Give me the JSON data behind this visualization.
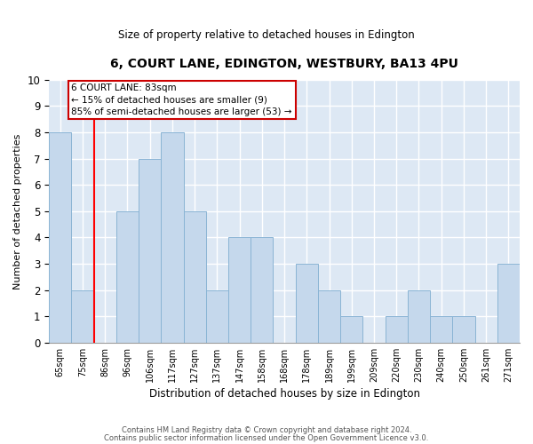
{
  "title1": "6, COURT LANE, EDINGTON, WESTBURY, BA13 4PU",
  "title2": "Size of property relative to detached houses in Edington",
  "xlabel": "Distribution of detached houses by size in Edington",
  "ylabel": "Number of detached properties",
  "bins": [
    "65sqm",
    "75sqm",
    "86sqm",
    "96sqm",
    "106sqm",
    "117sqm",
    "127sqm",
    "137sqm",
    "147sqm",
    "158sqm",
    "168sqm",
    "178sqm",
    "189sqm",
    "199sqm",
    "209sqm",
    "220sqm",
    "230sqm",
    "240sqm",
    "250sqm",
    "261sqm",
    "271sqm"
  ],
  "values": [
    8,
    2,
    0,
    5,
    7,
    8,
    5,
    2,
    4,
    4,
    0,
    3,
    2,
    1,
    0,
    1,
    2,
    1,
    1,
    0,
    3
  ],
  "bar_color": "#c5d8ec",
  "bar_edge_color": "#8ab4d4",
  "red_line_index": 2,
  "annotation_title": "6 COURT LANE: 83sqm",
  "annotation_line1": "← 15% of detached houses are smaller (9)",
  "annotation_line2": "85% of semi-detached houses are larger (53) →",
  "annotation_box_color": "#ffffff",
  "annotation_box_edge": "#cc0000",
  "ylim": [
    0,
    10
  ],
  "footer1": "Contains HM Land Registry data © Crown copyright and database right 2024.",
  "footer2": "Contains public sector information licensed under the Open Government Licence v3.0.",
  "background_color": "#ffffff",
  "grid_color": "#ffffff",
  "plot_bg_color": "#dde8f4"
}
